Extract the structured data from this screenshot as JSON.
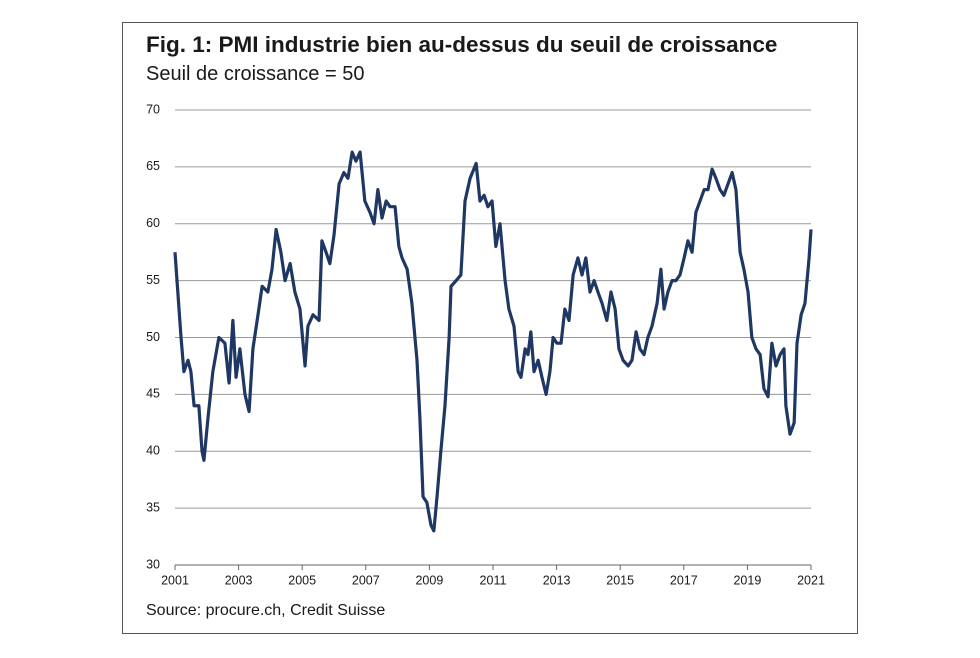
{
  "chart_data": {
    "type": "line",
    "title": "Fig. 1: PMI industrie bien au-dessus du seuil de croissance",
    "subtitle": "Seuil de croissance = 50",
    "source": "Source: procure.ch, Credit Suisse",
    "xlim": [
      2001,
      2021
    ],
    "xticks": [
      2001,
      2003,
      2005,
      2007,
      2009,
      2011,
      2013,
      2015,
      2017,
      2019,
      2021
    ],
    "ylim": [
      30,
      70
    ],
    "yticks": [
      30,
      35,
      40,
      45,
      50,
      55,
      60,
      65,
      70
    ],
    "grid": true,
    "series": [
      {
        "name": "PMI industrie",
        "color": "#1f3763",
        "x": [
          2001.0,
          2001.19,
          2001.28,
          2001.41,
          2001.5,
          2001.6,
          2001.75,
          2001.85,
          2001.91,
          2002.04,
          2002.19,
          2002.38,
          2002.57,
          2002.7,
          2002.82,
          2002.92,
          2003.04,
          2003.2,
          2003.33,
          2003.45,
          2003.61,
          2003.74,
          2003.92,
          2004.05,
          2004.18,
          2004.33,
          2004.46,
          2004.62,
          2004.77,
          2004.93,
          2005.09,
          2005.18,
          2005.34,
          2005.53,
          2005.62,
          2005.75,
          2005.87,
          2006.0,
          2006.16,
          2006.31,
          2006.44,
          2006.57,
          2006.69,
          2006.82,
          2006.97,
          2007.13,
          2007.26,
          2007.38,
          2007.51,
          2007.64,
          2007.76,
          2007.92,
          2008.04,
          2008.14,
          2008.3,
          2008.45,
          2008.61,
          2008.7,
          2008.8,
          2008.92,
          2009.05,
          2009.14,
          2009.24,
          2009.36,
          2009.49,
          2009.62,
          2009.68,
          2009.84,
          2009.99,
          2010.12,
          2010.28,
          2010.47,
          2010.59,
          2010.72,
          2010.84,
          2010.97,
          2011.09,
          2011.22,
          2011.38,
          2011.5,
          2011.66,
          2011.79,
          2011.88,
          2012.01,
          2012.1,
          2012.19,
          2012.29,
          2012.42,
          2012.54,
          2012.67,
          2012.79,
          2012.89,
          2013.01,
          2013.14,
          2013.26,
          2013.39,
          2013.52,
          2013.67,
          2013.8,
          2013.92,
          2014.05,
          2014.18,
          2014.3,
          2014.43,
          2014.58,
          2014.71,
          2014.84,
          2014.96,
          2015.09,
          2015.25,
          2015.37,
          2015.5,
          2015.62,
          2015.75,
          2015.87,
          2016.0,
          2016.16,
          2016.28,
          2016.38,
          2016.5,
          2016.63,
          2016.75,
          2016.88,
          2017.01,
          2017.13,
          2017.26,
          2017.38,
          2017.51,
          2017.64,
          2017.76,
          2017.89,
          2018.01,
          2018.14,
          2018.26,
          2018.39,
          2018.52,
          2018.64,
          2018.77,
          2018.89,
          2019.02,
          2019.14,
          2019.27,
          2019.4,
          2019.52,
          2019.65,
          2019.77,
          2019.9,
          2020.03,
          2020.15,
          2020.21,
          2020.34,
          2020.47,
          2020.56,
          2020.69,
          2020.81,
          2020.94,
          2021.0
        ],
        "values": [
          57.5,
          50,
          47,
          48,
          47,
          44,
          44,
          40,
          39.2,
          43,
          47,
          50,
          49.5,
          46,
          51.5,
          46.5,
          49,
          45,
          43.5,
          49,
          52,
          54.5,
          54,
          56,
          59.5,
          57.5,
          55,
          56.5,
          54,
          52.5,
          47.5,
          51,
          52,
          51.5,
          58.5,
          57.5,
          56.5,
          59,
          63.5,
          64.5,
          64,
          66.3,
          65.5,
          66.3,
          62,
          61,
          60,
          63,
          60.5,
          62,
          61.5,
          61.5,
          58,
          57,
          56,
          53,
          48,
          43,
          36,
          35.5,
          33.5,
          33,
          36,
          40,
          44,
          50,
          54.5,
          55,
          55.5,
          62,
          64,
          65.3,
          62,
          62.5,
          61.5,
          62,
          58,
          60,
          55,
          52.5,
          51,
          47,
          46.5,
          49,
          48.5,
          50.5,
          47,
          48,
          46.5,
          45,
          47,
          50,
          49.5,
          49.5,
          52.5,
          51.5,
          55.5,
          57,
          55.5,
          57,
          54,
          55,
          54,
          53,
          51.5,
          54,
          52.5,
          49,
          48,
          47.5,
          48,
          50.5,
          49,
          48.5,
          50,
          51,
          53,
          56,
          52.5,
          54,
          55,
          55,
          55.5,
          57,
          58.5,
          57.5,
          61,
          62,
          63,
          63,
          64.8,
          64,
          63,
          62.5,
          63.5,
          64.5,
          63,
          57.5,
          56,
          54,
          50,
          49,
          48.5,
          45.5,
          44.8,
          49.5,
          47.5,
          48.5,
          49,
          44,
          41.5,
          42.5,
          49.5,
          52,
          53,
          57,
          59.5
        ]
      }
    ]
  }
}
